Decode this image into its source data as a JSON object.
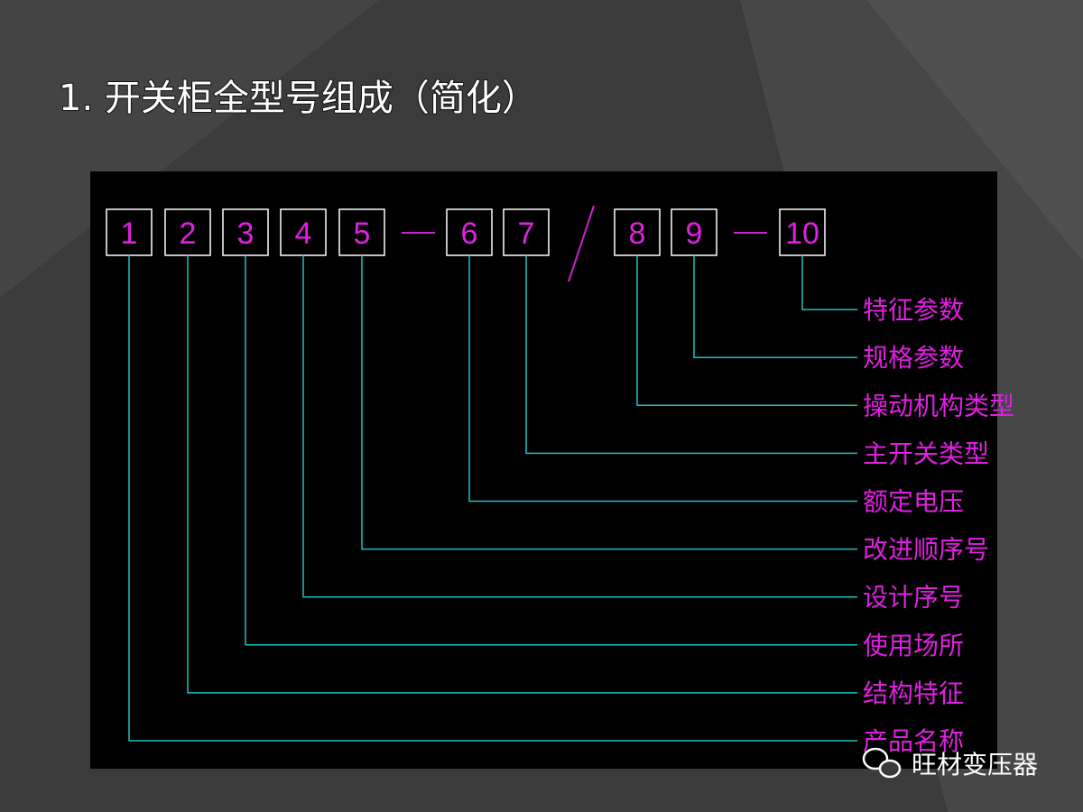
{
  "title": "1. 开关柜全型号组成（简化）",
  "boxes": [
    {
      "number": "1",
      "label": "产品名称"
    },
    {
      "number": "2",
      "label": "结构特征"
    },
    {
      "number": "3",
      "label": "使用场所"
    },
    {
      "number": "4",
      "label": "设计序号"
    },
    {
      "number": "5",
      "label": "改进顺序号"
    },
    {
      "number": "6",
      "label": "额定电压"
    },
    {
      "number": "7",
      "label": "主开关类型"
    },
    {
      "number": "8",
      "label": "操动机构类型"
    },
    {
      "number": "9",
      "label": "规格参数"
    },
    {
      "number": "10",
      "label": "特征参数"
    }
  ],
  "watermark": "旺材变压器"
}
